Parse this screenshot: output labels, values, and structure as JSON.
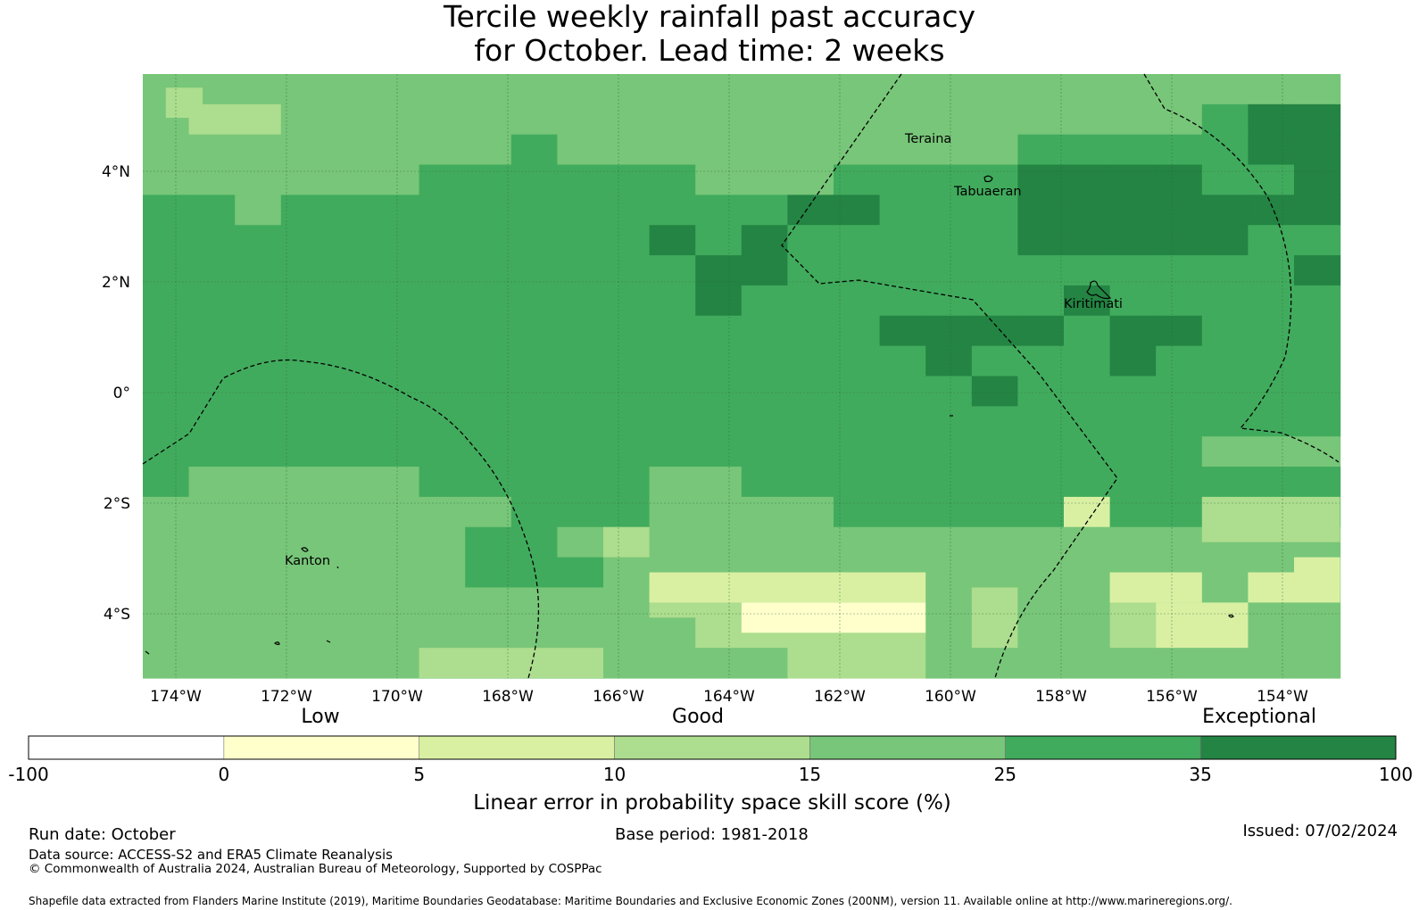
{
  "title": {
    "line1": "Tercile weekly rainfall past accuracy",
    "line2": "for October. Lead time: 2 weeks"
  },
  "map": {
    "lon_labels": [
      "174°W",
      "172°W",
      "170°W",
      "168°W",
      "166°W",
      "164°W",
      "162°W",
      "160°W",
      "158°W",
      "156°W",
      "154°W"
    ],
    "lat_labels": [
      "4°N",
      "2°N",
      "0°",
      "2°S",
      "4°S"
    ],
    "places": [
      "Teraina",
      "Tabuaeran",
      "Kiritimati",
      "Kanton"
    ]
  },
  "legend": {
    "category_labels": [
      "Low",
      "Good",
      "Exceptional"
    ],
    "tick_labels": [
      "-100",
      "0",
      "5",
      "10",
      "15",
      "25",
      "35",
      "100"
    ],
    "colors": [
      "#ffffff",
      "#ffffcc",
      "#d9f0a3",
      "#addd8e",
      "#78c679",
      "#41ab5d",
      "#238443"
    ],
    "axis_label": "Linear error in probability space skill score (%)"
  },
  "footer": {
    "run_date": "Run date: October",
    "base_period": "Base period: 1981-2018",
    "issued": "Issued: 07/02/2024",
    "data_source": "Data source: ACCESS-S2 and ERA5 Climate Reanalysis",
    "copyright": "© Commonwealth of Australia 2024, Australian Bureau of Meteorology, Supported by COSPPac",
    "shapefile": "Shapefile data extracted from Flanders Marine Institute (2019), Maritime Boundaries Geodatabase: Maritime Boundaries and Exclusive Economic Zones (200NM), version 11. Available online at http://www.marineregions.org/."
  }
}
